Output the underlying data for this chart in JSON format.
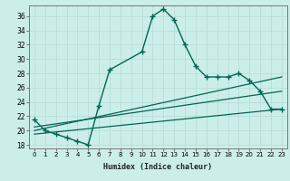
{
  "xlabel": "Humidex (Indice chaleur)",
  "bg_color": "#cceee8",
  "grid_color": "#b8ddd8",
  "line_color": "#006655",
  "xlim": [
    -0.5,
    23.5
  ],
  "ylim": [
    17.5,
    37.5
  ],
  "yticks": [
    18,
    20,
    22,
    24,
    26,
    28,
    30,
    32,
    34,
    36
  ],
  "xticks": [
    0,
    1,
    2,
    3,
    4,
    5,
    6,
    7,
    8,
    9,
    10,
    11,
    12,
    13,
    14,
    15,
    16,
    17,
    18,
    19,
    20,
    21,
    22,
    23
  ],
  "series_main": {
    "x": [
      0,
      1,
      2,
      3,
      4,
      5,
      6,
      7,
      10,
      11,
      12,
      13,
      14,
      15,
      16,
      17,
      18,
      19,
      20,
      21,
      22,
      23
    ],
    "y": [
      21.5,
      20.0,
      19.5,
      19.0,
      18.5,
      18.0,
      23.5,
      28.5,
      31.0,
      36.0,
      37.0,
      35.5,
      32.0,
      29.0,
      27.5,
      27.5,
      27.5,
      28.0,
      27.0,
      25.5,
      23.0,
      23.0
    ]
  },
  "series_lines": [
    {
      "x": [
        0,
        23
      ],
      "y": [
        19.5,
        23.0
      ]
    },
    {
      "x": [
        0,
        23
      ],
      "y": [
        20.0,
        27.5
      ]
    },
    {
      "x": [
        0,
        23
      ],
      "y": [
        20.5,
        25.5
      ]
    }
  ]
}
